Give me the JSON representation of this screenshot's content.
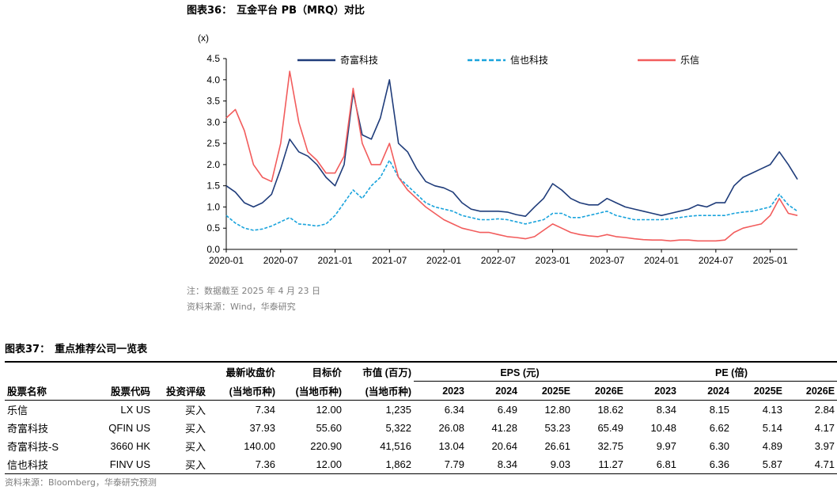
{
  "figure36": {
    "label": "图表36：",
    "title": "互金平台 PB（MRQ）对比",
    "note": "注：数据截至 2025 年 4 月 23 日",
    "source": "资料来源：Wind，华泰研究"
  },
  "chart_data": {
    "type": "line",
    "unit_label": "(x)",
    "ylim": [
      0,
      4.5
    ],
    "yticks": [
      "0.0",
      "0.5",
      "1.0",
      "1.5",
      "2.0",
      "2.5",
      "3.0",
      "3.5",
      "4.0",
      "4.5"
    ],
    "xlim": [
      "2020-01",
      "2025-04"
    ],
    "xticks": [
      "2020-01",
      "2020-07",
      "2021-01",
      "2021-07",
      "2022-01",
      "2022-07",
      "2023-01",
      "2023-07",
      "2024-01",
      "2024-07",
      "2025-01"
    ],
    "grid": false,
    "legend_position": "top",
    "series": [
      {
        "name": "奇富科技",
        "color": "#1f3c7a",
        "style": "solid",
        "points": [
          [
            "2020-01",
            1.5
          ],
          [
            "2020-02",
            1.35
          ],
          [
            "2020-03",
            1.1
          ],
          [
            "2020-04",
            1.0
          ],
          [
            "2020-05",
            1.1
          ],
          [
            "2020-06",
            1.3
          ],
          [
            "2020-07",
            1.9
          ],
          [
            "2020-08",
            2.6
          ],
          [
            "2020-09",
            2.3
          ],
          [
            "2020-10",
            2.2
          ],
          [
            "2020-11",
            2.0
          ],
          [
            "2020-12",
            1.7
          ],
          [
            "2021-01",
            1.5
          ],
          [
            "2021-02",
            2.0
          ],
          [
            "2021-03",
            3.7
          ],
          [
            "2021-04",
            2.7
          ],
          [
            "2021-05",
            2.6
          ],
          [
            "2021-06",
            3.1
          ],
          [
            "2021-07",
            4.0
          ],
          [
            "2021-08",
            2.5
          ],
          [
            "2021-09",
            2.3
          ],
          [
            "2021-10",
            1.9
          ],
          [
            "2021-11",
            1.6
          ],
          [
            "2021-12",
            1.5
          ],
          [
            "2022-01",
            1.45
          ],
          [
            "2022-02",
            1.35
          ],
          [
            "2022-03",
            1.1
          ],
          [
            "2022-04",
            0.95
          ],
          [
            "2022-05",
            0.9
          ],
          [
            "2022-06",
            0.9
          ],
          [
            "2022-07",
            0.9
          ],
          [
            "2022-08",
            0.88
          ],
          [
            "2022-09",
            0.82
          ],
          [
            "2022-10",
            0.78
          ],
          [
            "2022-11",
            1.0
          ],
          [
            "2022-12",
            1.2
          ],
          [
            "2023-01",
            1.55
          ],
          [
            "2023-02",
            1.4
          ],
          [
            "2023-03",
            1.2
          ],
          [
            "2023-04",
            1.1
          ],
          [
            "2023-05",
            1.05
          ],
          [
            "2023-06",
            1.05
          ],
          [
            "2023-07",
            1.2
          ],
          [
            "2023-08",
            1.1
          ],
          [
            "2023-09",
            1.0
          ],
          [
            "2023-10",
            0.95
          ],
          [
            "2023-11",
            0.9
          ],
          [
            "2023-12",
            0.85
          ],
          [
            "2024-01",
            0.8
          ],
          [
            "2024-02",
            0.85
          ],
          [
            "2024-03",
            0.9
          ],
          [
            "2024-04",
            0.95
          ],
          [
            "2024-05",
            1.05
          ],
          [
            "2024-06",
            1.0
          ],
          [
            "2024-07",
            1.1
          ],
          [
            "2024-08",
            1.1
          ],
          [
            "2024-09",
            1.5
          ],
          [
            "2024-10",
            1.7
          ],
          [
            "2024-11",
            1.8
          ],
          [
            "2024-12",
            1.9
          ],
          [
            "2025-01",
            2.0
          ],
          [
            "2025-02",
            2.3
          ],
          [
            "2025-03",
            2.0
          ],
          [
            "2025-04",
            1.65
          ]
        ]
      },
      {
        "name": "信也科技",
        "color": "#19a3dc",
        "style": "dashed",
        "points": [
          [
            "2020-01",
            0.8
          ],
          [
            "2020-02",
            0.62
          ],
          [
            "2020-03",
            0.5
          ],
          [
            "2020-04",
            0.45
          ],
          [
            "2020-05",
            0.48
          ],
          [
            "2020-06",
            0.55
          ],
          [
            "2020-07",
            0.65
          ],
          [
            "2020-08",
            0.75
          ],
          [
            "2020-09",
            0.6
          ],
          [
            "2020-10",
            0.58
          ],
          [
            "2020-11",
            0.55
          ],
          [
            "2020-12",
            0.6
          ],
          [
            "2021-01",
            0.8
          ],
          [
            "2021-02",
            1.1
          ],
          [
            "2021-03",
            1.4
          ],
          [
            "2021-04",
            1.2
          ],
          [
            "2021-05",
            1.5
          ],
          [
            "2021-06",
            1.7
          ],
          [
            "2021-07",
            2.1
          ],
          [
            "2021-08",
            1.7
          ],
          [
            "2021-09",
            1.5
          ],
          [
            "2021-10",
            1.3
          ],
          [
            "2021-11",
            1.1
          ],
          [
            "2021-12",
            1.0
          ],
          [
            "2022-01",
            0.95
          ],
          [
            "2022-02",
            0.9
          ],
          [
            "2022-03",
            0.8
          ],
          [
            "2022-04",
            0.75
          ],
          [
            "2022-05",
            0.7
          ],
          [
            "2022-06",
            0.7
          ],
          [
            "2022-07",
            0.72
          ],
          [
            "2022-08",
            0.7
          ],
          [
            "2022-09",
            0.65
          ],
          [
            "2022-10",
            0.6
          ],
          [
            "2022-11",
            0.65
          ],
          [
            "2022-12",
            0.7
          ],
          [
            "2023-01",
            0.85
          ],
          [
            "2023-02",
            0.85
          ],
          [
            "2023-03",
            0.75
          ],
          [
            "2023-04",
            0.75
          ],
          [
            "2023-05",
            0.8
          ],
          [
            "2023-06",
            0.85
          ],
          [
            "2023-07",
            0.9
          ],
          [
            "2023-08",
            0.8
          ],
          [
            "2023-09",
            0.75
          ],
          [
            "2023-10",
            0.7
          ],
          [
            "2023-11",
            0.7
          ],
          [
            "2023-12",
            0.7
          ],
          [
            "2024-01",
            0.7
          ],
          [
            "2024-02",
            0.72
          ],
          [
            "2024-03",
            0.75
          ],
          [
            "2024-04",
            0.78
          ],
          [
            "2024-05",
            0.8
          ],
          [
            "2024-06",
            0.8
          ],
          [
            "2024-07",
            0.8
          ],
          [
            "2024-08",
            0.8
          ],
          [
            "2024-09",
            0.85
          ],
          [
            "2024-10",
            0.88
          ],
          [
            "2024-11",
            0.9
          ],
          [
            "2024-12",
            0.95
          ],
          [
            "2025-01",
            1.0
          ],
          [
            "2025-02",
            1.3
          ],
          [
            "2025-03",
            1.05
          ],
          [
            "2025-04",
            0.9
          ]
        ]
      },
      {
        "name": "乐信",
        "color": "#f25c5c",
        "style": "solid",
        "points": [
          [
            "2020-01",
            3.1
          ],
          [
            "2020-02",
            3.3
          ],
          [
            "2020-03",
            2.8
          ],
          [
            "2020-04",
            2.0
          ],
          [
            "2020-05",
            1.7
          ],
          [
            "2020-06",
            1.6
          ],
          [
            "2020-07",
            2.5
          ],
          [
            "2020-08",
            4.2
          ],
          [
            "2020-09",
            3.0
          ],
          [
            "2020-10",
            2.3
          ],
          [
            "2020-11",
            2.1
          ],
          [
            "2020-12",
            1.8
          ],
          [
            "2021-01",
            1.8
          ],
          [
            "2021-02",
            2.2
          ],
          [
            "2021-03",
            3.8
          ],
          [
            "2021-04",
            2.5
          ],
          [
            "2021-05",
            2.0
          ],
          [
            "2021-06",
            2.0
          ],
          [
            "2021-07",
            2.5
          ],
          [
            "2021-08",
            1.7
          ],
          [
            "2021-09",
            1.4
          ],
          [
            "2021-10",
            1.2
          ],
          [
            "2021-11",
            1.0
          ],
          [
            "2021-12",
            0.85
          ],
          [
            "2022-01",
            0.7
          ],
          [
            "2022-02",
            0.6
          ],
          [
            "2022-03",
            0.5
          ],
          [
            "2022-04",
            0.45
          ],
          [
            "2022-05",
            0.4
          ],
          [
            "2022-06",
            0.4
          ],
          [
            "2022-07",
            0.35
          ],
          [
            "2022-08",
            0.3
          ],
          [
            "2022-09",
            0.28
          ],
          [
            "2022-10",
            0.25
          ],
          [
            "2022-11",
            0.3
          ],
          [
            "2022-12",
            0.45
          ],
          [
            "2023-01",
            0.6
          ],
          [
            "2023-02",
            0.5
          ],
          [
            "2023-03",
            0.4
          ],
          [
            "2023-04",
            0.35
          ],
          [
            "2023-05",
            0.32
          ],
          [
            "2023-06",
            0.3
          ],
          [
            "2023-07",
            0.35
          ],
          [
            "2023-08",
            0.3
          ],
          [
            "2023-09",
            0.28
          ],
          [
            "2023-10",
            0.25
          ],
          [
            "2023-11",
            0.23
          ],
          [
            "2023-12",
            0.22
          ],
          [
            "2024-01",
            0.22
          ],
          [
            "2024-02",
            0.2
          ],
          [
            "2024-03",
            0.22
          ],
          [
            "2024-04",
            0.22
          ],
          [
            "2024-05",
            0.2
          ],
          [
            "2024-06",
            0.2
          ],
          [
            "2024-07",
            0.2
          ],
          [
            "2024-08",
            0.22
          ],
          [
            "2024-09",
            0.4
          ],
          [
            "2024-10",
            0.5
          ],
          [
            "2024-11",
            0.55
          ],
          [
            "2024-12",
            0.6
          ],
          [
            "2025-01",
            0.8
          ],
          [
            "2025-02",
            1.2
          ],
          [
            "2025-03",
            0.85
          ],
          [
            "2025-04",
            0.8
          ]
        ]
      }
    ]
  },
  "figure37": {
    "label": "图表37：",
    "title": "重点推荐公司一览表",
    "source": "资料来源：Bloomberg，华泰研究预测",
    "header_row1": {
      "price": "最新收盘价",
      "target": "目标价",
      "mktcap": "市值 (百万)",
      "eps_group": "EPS (元)",
      "pe_group": "PE (倍)"
    },
    "header_row2": {
      "name": "股票名称",
      "code": "股票代码",
      "rating": "投资评级",
      "price_ccy": "(当地币种)",
      "target_ccy": "(当地币种)",
      "mktcap_ccy": "(当地币种)",
      "eps_years": [
        "2023",
        "2024",
        "2025E",
        "2026E"
      ],
      "pe_years": [
        "2023",
        "2024",
        "2025E",
        "2026E"
      ]
    },
    "rows": [
      {
        "name": "乐信",
        "code": "LX US",
        "rating": "买入",
        "price": "7.34",
        "target": "12.00",
        "mktcap": "1,235",
        "eps": [
          "6.34",
          "6.49",
          "12.80",
          "18.62"
        ],
        "pe": [
          "8.34",
          "8.15",
          "4.13",
          "2.84"
        ]
      },
      {
        "name": "奇富科技",
        "code": "QFIN US",
        "rating": "买入",
        "price": "37.93",
        "target": "55.60",
        "mktcap": "5,322",
        "eps": [
          "26.08",
          "41.28",
          "53.23",
          "65.49"
        ],
        "pe": [
          "10.48",
          "6.62",
          "5.14",
          "4.17"
        ]
      },
      {
        "name": "奇富科技-S",
        "code": "3660 HK",
        "rating": "买入",
        "price": "140.00",
        "target": "220.90",
        "mktcap": "41,516",
        "eps": [
          "13.04",
          "20.64",
          "26.61",
          "32.75"
        ],
        "pe": [
          "9.97",
          "6.30",
          "4.89",
          "3.97"
        ]
      },
      {
        "name": "信也科技",
        "code": "FINV US",
        "rating": "买入",
        "price": "7.36",
        "target": "12.00",
        "mktcap": "1,862",
        "eps": [
          "7.79",
          "8.34",
          "9.03",
          "11.27"
        ],
        "pe": [
          "6.81",
          "6.36",
          "5.87",
          "4.71"
        ]
      }
    ]
  }
}
